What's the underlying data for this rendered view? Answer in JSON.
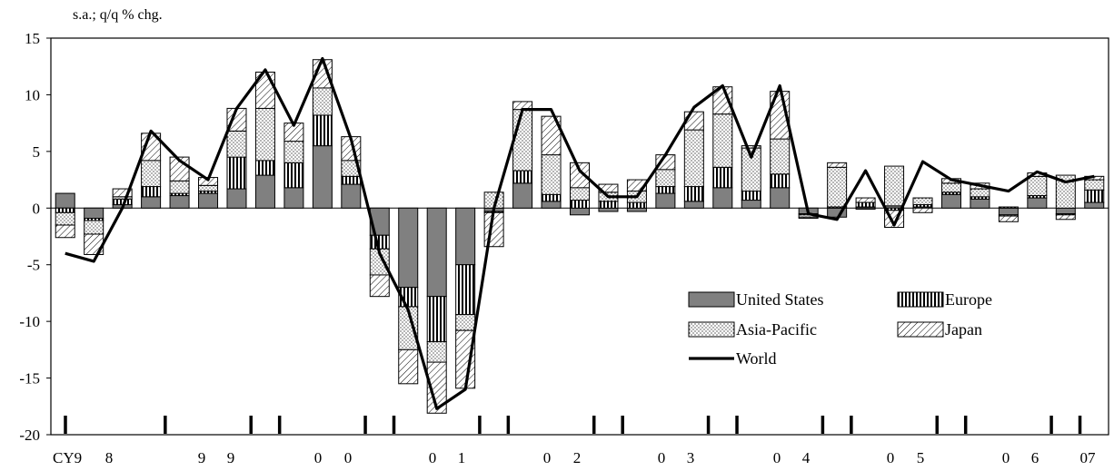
{
  "chart_data": {
    "type": "bar",
    "subtype": "stacked-bar-with-line",
    "unit_label": "s.a.; q/q % chg.",
    "ylim": [
      -20,
      15
    ],
    "yticks": [
      15,
      10,
      5,
      0,
      -5,
      -10,
      -15,
      -20
    ],
    "x_tick_labels": [
      "CY9",
      "8",
      "9",
      "9",
      "0",
      "0",
      "0",
      "1",
      "0",
      "2",
      "0",
      "3",
      "0",
      "4",
      "0",
      "5",
      "0",
      "6",
      "07"
    ],
    "grid": false,
    "legend_position": "lower-right, inside plot",
    "series": [
      {
        "name": "United States",
        "color": "#808080",
        "values": [
          1.3,
          -0.9,
          0.3,
          1.0,
          1.1,
          1.3,
          1.7,
          2.9,
          1.8,
          5.5,
          2.1,
          -2.4,
          -7.0,
          -7.8,
          -5.0,
          -0.3,
          2.2,
          0.6,
          -0.6,
          -0.3,
          -0.3,
          1.3,
          0.6,
          1.8,
          0.7,
          1.8,
          -0.5,
          -0.8,
          0.1,
          0.2,
          0.1,
          1.2,
          0.8,
          -0.6,
          0.9,
          -0.5,
          0.5
        ]
      },
      {
        "name": "Europe",
        "color": "#ffffff",
        "values": [
          -0.4,
          -0.2,
          0.5,
          0.9,
          0.2,
          0.2,
          2.8,
          1.3,
          2.2,
          2.7,
          0.7,
          -1.2,
          -1.7,
          -4.0,
          -4.4,
          -0.1,
          1.1,
          0.6,
          0.7,
          0.6,
          0.5,
          0.6,
          1.3,
          1.8,
          0.8,
          1.2,
          -0.1,
          0.1,
          0.4,
          -0.2,
          0.2,
          0.2,
          0.2,
          0.1,
          0.2,
          -0.1,
          1.1
        ]
      },
      {
        "name": "Asia-Pacific",
        "color": "#ffffff",
        "values": [
          -1.1,
          -1.2,
          0.2,
          2.3,
          1.1,
          0.5,
          2.3,
          4.6,
          1.9,
          2.4,
          1.4,
          -2.3,
          -3.8,
          -1.8,
          -1.4,
          1.4,
          5.4,
          3.5,
          1.1,
          0.8,
          1.0,
          1.5,
          5.0,
          4.7,
          3.8,
          3.1,
          -0.2,
          3.5,
          -0.1,
          3.5,
          0.6,
          0.8,
          0.7,
          -0.1,
          1.7,
          2.9,
          0.9
        ]
      },
      {
        "name": "Japan",
        "color": "#ffffff",
        "values": [
          -1.1,
          -1.8,
          0.7,
          2.4,
          2.1,
          0.7,
          2.0,
          3.2,
          1.6,
          2.5,
          2.1,
          -1.9,
          -3.0,
          -4.5,
          -5.1,
          -3.0,
          0.7,
          3.4,
          2.2,
          0.7,
          1.0,
          1.3,
          1.6,
          2.4,
          0.2,
          4.2,
          -0.1,
          0.4,
          0.4,
          -1.5,
          -0.4,
          0.4,
          0.5,
          -0.5,
          0.3,
          -0.4,
          0.3
        ]
      },
      {
        "name": "World",
        "color": "#000000",
        "kind": "line",
        "values": [
          -4.0,
          -4.7,
          0.0,
          6.8,
          4.2,
          2.5,
          8.8,
          12.2,
          7.3,
          13.2,
          6.1,
          -4.0,
          -9.0,
          -17.7,
          -16.0,
          0.0,
          8.7,
          8.7,
          3.3,
          1.0,
          1.0,
          4.7,
          8.9,
          10.8,
          4.5,
          10.8,
          -0.5,
          -1.0,
          3.3,
          -1.5,
          4.1,
          2.5,
          2.0,
          1.5,
          3.2,
          2.3,
          2.8
        ]
      }
    ]
  }
}
